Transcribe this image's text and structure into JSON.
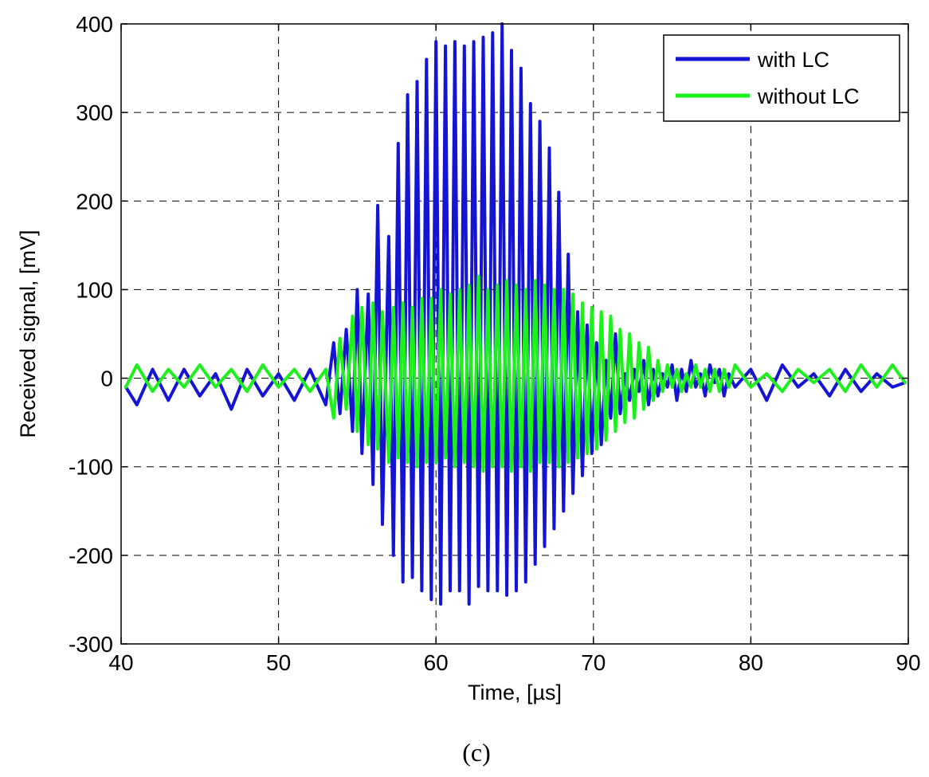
{
  "chart_data": {
    "type": "line",
    "title": "",
    "xlabel": "Time, [µs]",
    "ylabel": "Received signal, [mV]",
    "xlim": [
      40,
      90
    ],
    "ylim": [
      -300,
      400
    ],
    "xticks": [
      40,
      50,
      60,
      70,
      80,
      90
    ],
    "yticks": [
      -300,
      -200,
      -100,
      0,
      100,
      200,
      300,
      400
    ],
    "grid": true,
    "legend_position": "top-right",
    "series": [
      {
        "name": "with LC",
        "color": "#1414d2",
        "x": [
          40.3,
          41.0,
          42.0,
          43.0,
          44.0,
          45.0,
          46.0,
          47.0,
          48.0,
          49.0,
          50.0,
          51.0,
          52.0,
          53.0,
          53.5,
          53.9,
          54.3,
          54.7,
          55.0,
          55.3,
          55.7,
          56.0,
          56.3,
          56.6,
          57.0,
          57.3,
          57.6,
          57.9,
          58.2,
          58.5,
          58.8,
          59.1,
          59.4,
          59.7,
          60.0,
          60.3,
          60.6,
          60.9,
          61.2,
          61.5,
          61.8,
          62.1,
          62.4,
          62.7,
          63.0,
          63.3,
          63.6,
          63.9,
          64.2,
          64.5,
          64.8,
          65.1,
          65.4,
          65.7,
          66.0,
          66.3,
          66.6,
          66.9,
          67.2,
          67.5,
          67.8,
          68.1,
          68.4,
          68.7,
          69.0,
          69.3,
          69.6,
          69.9,
          70.2,
          70.5,
          70.8,
          71.1,
          71.4,
          71.7,
          72.0,
          72.3,
          72.6,
          72.9,
          73.2,
          73.5,
          73.8,
          74.1,
          74.4,
          74.7,
          75.0,
          75.3,
          75.6,
          75.9,
          76.2,
          76.5,
          76.8,
          77.1,
          77.4,
          77.7,
          78.0,
          78.3,
          78.6,
          79.0,
          80.0,
          81.0,
          82.0,
          83.0,
          84.0,
          85.0,
          86.0,
          87.0,
          88.0,
          89.0,
          89.8
        ],
        "values": [
          -10,
          -30,
          10,
          -25,
          10,
          -20,
          5,
          -35,
          10,
          -20,
          5,
          -25,
          10,
          -30,
          40,
          -40,
          55,
          -60,
          100,
          -85,
          95,
          -120,
          195,
          -165,
          160,
          -200,
          265,
          -230,
          320,
          -225,
          335,
          -240,
          360,
          -250,
          380,
          -255,
          375,
          -240,
          380,
          -240,
          375,
          -255,
          380,
          -235,
          385,
          -240,
          390,
          -240,
          400,
          -245,
          370,
          -240,
          350,
          -230,
          310,
          -210,
          290,
          -190,
          260,
          -170,
          210,
          -150,
          140,
          -130,
          75,
          -110,
          60,
          -85,
          40,
          -75,
          20,
          -45,
          50,
          -40,
          5,
          -25,
          10,
          -15,
          20,
          -30,
          10,
          -20,
          5,
          -10,
          15,
          -25,
          10,
          -15,
          20,
          -10,
          5,
          -20,
          15,
          -5,
          10,
          -20,
          5,
          -10,
          10,
          -25,
          15,
          -10,
          5,
          -20,
          10,
          -15,
          5,
          -10,
          -5
        ]
      },
      {
        "name": "without LC",
        "color": "#1ef01e",
        "x": [
          40.3,
          41.0,
          42.0,
          43.0,
          44.0,
          45.0,
          46.0,
          47.0,
          48.0,
          49.0,
          50.0,
          51.0,
          52.0,
          53.0,
          53.5,
          53.9,
          54.3,
          54.7,
          55.0,
          55.3,
          55.7,
          56.0,
          56.3,
          56.6,
          57.0,
          57.3,
          57.6,
          57.9,
          58.2,
          58.5,
          58.8,
          59.1,
          59.4,
          59.7,
          60.0,
          60.3,
          60.6,
          60.9,
          61.2,
          61.5,
          61.8,
          62.1,
          62.4,
          62.7,
          63.0,
          63.3,
          63.6,
          63.9,
          64.2,
          64.5,
          64.8,
          65.1,
          65.4,
          65.7,
          66.0,
          66.3,
          66.6,
          66.9,
          67.2,
          67.5,
          67.8,
          68.1,
          68.4,
          68.7,
          69.0,
          69.3,
          69.6,
          69.9,
          70.2,
          70.5,
          70.8,
          71.1,
          71.4,
          71.7,
          72.0,
          72.3,
          72.6,
          72.9,
          73.2,
          73.5,
          73.8,
          74.1,
          74.4,
          74.7,
          75.0,
          75.3,
          75.6,
          75.9,
          76.2,
          76.5,
          76.8,
          77.1,
          77.4,
          77.7,
          78.0,
          78.3,
          78.6,
          79.0,
          80.0,
          81.0,
          82.0,
          83.0,
          84.0,
          85.0,
          86.0,
          87.0,
          88.0,
          89.0,
          89.8
        ],
        "values": [
          -10,
          15,
          -15,
          10,
          -10,
          15,
          -10,
          10,
          -15,
          15,
          -10,
          10,
          -15,
          10,
          -45,
          45,
          -35,
          70,
          -60,
          80,
          -75,
          85,
          -80,
          75,
          -95,
          80,
          -90,
          85,
          -95,
          80,
          -100,
          90,
          -95,
          90,
          -95,
          100,
          -90,
          95,
          -100,
          100,
          -95,
          105,
          -100,
          115,
          -105,
          100,
          -100,
          105,
          -100,
          110,
          -105,
          105,
          -100,
          100,
          -105,
          110,
          -95,
          105,
          -95,
          100,
          -100,
          100,
          -95,
          95,
          -90,
          85,
          -85,
          80,
          -80,
          75,
          -70,
          70,
          -60,
          55,
          -50,
          50,
          -45,
          40,
          -35,
          35,
          -25,
          20,
          -15,
          15,
          -10,
          10,
          -15,
          5,
          -10,
          15,
          -10,
          10,
          -15,
          10,
          -15,
          10,
          -10,
          15,
          -10,
          5,
          -15,
          10,
          -5,
          10,
          -15,
          15,
          -10,
          15,
          -5
        ]
      }
    ],
    "caption": "(c)"
  }
}
